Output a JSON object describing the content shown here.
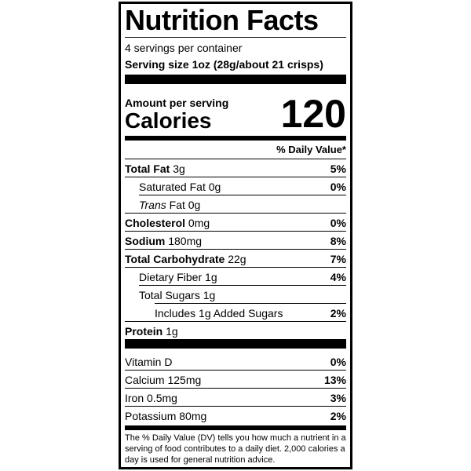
{
  "header": {
    "title": "Nutrition Facts",
    "servings": "4 servings per container",
    "serving_size": "Serving size 1oz (28g/about 21 crisps)"
  },
  "calories": {
    "label_small": "Amount per serving",
    "label": "Calories",
    "value": "120"
  },
  "dv_header": "% Daily Value*",
  "nutrients": [
    {
      "name": "Total Fat",
      "amount": "3g",
      "dv": "5%"
    },
    {
      "name": "Saturated Fat",
      "amount": "0g",
      "dv": "0%"
    },
    {
      "name": "Trans",
      "amount": "Fat 0g"
    },
    {
      "name": "Cholesterol",
      "amount": "0mg",
      "dv": "0%"
    },
    {
      "name": "Sodium",
      "amount": "180mg",
      "dv": "8%"
    },
    {
      "name": "Total Carbohydrate",
      "amount": "22g",
      "dv": "7%"
    },
    {
      "name": "Dietary Fiber",
      "amount": "1g",
      "dv": "4%"
    },
    {
      "name": "Total Sugars",
      "amount": "1g"
    },
    {
      "name": "Includes 1g Added Sugars",
      "dv": "2%"
    },
    {
      "name": "Protein",
      "amount": "1g"
    }
  ],
  "vitamins": [
    {
      "name": "Vitamin D",
      "dv": "0%"
    },
    {
      "name": "Calcium 125mg",
      "dv": "13%"
    },
    {
      "name": "Iron 0.5mg",
      "dv": "3%"
    },
    {
      "name": "Potassium 80mg",
      "dv": "2%"
    }
  ],
  "footnote": "The % Daily Value (DV) tells you how much a nutrient in a serving of food contributes to a daily diet. 2,000 calories a day is used for general nutrition advice."
}
